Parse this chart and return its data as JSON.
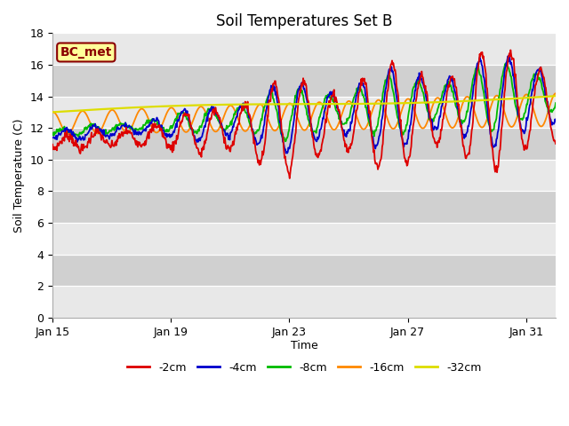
{
  "title": "Soil Temperatures Set B",
  "xlabel": "Time",
  "ylabel": "Soil Temperature (C)",
  "ylim": [
    0,
    18
  ],
  "xlim": [
    0,
    17
  ],
  "x_tick_labels": [
    "Jan 15",
    "Jan 19",
    "Jan 23",
    "Jan 27",
    "Jan 31"
  ],
  "x_tick_positions": [
    0,
    4,
    8,
    12,
    16
  ],
  "y_tick_positions": [
    0,
    2,
    4,
    6,
    8,
    10,
    12,
    14,
    16,
    18
  ],
  "background_color": "#ffffff",
  "plot_bg_color": "#e0e0e0",
  "label_box_text": "BC_met",
  "label_box_bg": "#ffff99",
  "label_box_edge": "#8b0000",
  "band_dark": "#d0d0d0",
  "band_light": "#e8e8e8",
  "line_colors": {
    "-2cm": "#dd0000",
    "-4cm": "#0000cc",
    "-8cm": "#00bb00",
    "-16cm": "#ff8800",
    "-32cm": "#dddd00"
  },
  "legend_entries": [
    "-2cm",
    "-4cm",
    "-8cm",
    "-16cm",
    "-32cm"
  ]
}
